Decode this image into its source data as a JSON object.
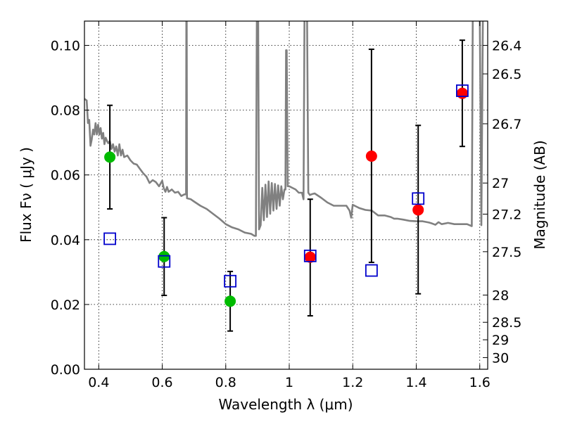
{
  "chart_data": {
    "type": "scatter",
    "xlabel": "Wavelength  λ (μm)",
    "ylabel": "Flux  Fν ( μJy )",
    "y2label": "Magnitude (AB)",
    "xlim": [
      0.355,
      1.625
    ],
    "ylim": [
      0.0,
      0.1075
    ],
    "grid": true,
    "x_ticks": [
      {
        "value": 0.4,
        "label": "0.4"
      },
      {
        "value": 0.6,
        "label": "0.6"
      },
      {
        "value": 0.8,
        "label": "0.8"
      },
      {
        "value": 1.0,
        "label": "1"
      },
      {
        "value": 1.2,
        "label": "1.2"
      },
      {
        "value": 1.4,
        "label": "1.4"
      },
      {
        "value": 1.6,
        "label": "1.6"
      }
    ],
    "y_ticks": [
      {
        "value": 0.0,
        "label": "0.00"
      },
      {
        "value": 0.02,
        "label": "0.02"
      },
      {
        "value": 0.04,
        "label": "0.04"
      },
      {
        "value": 0.06,
        "label": "0.06"
      },
      {
        "value": 0.08,
        "label": "0.08"
      },
      {
        "value": 0.1,
        "label": "0.10"
      }
    ],
    "y2_ticks": [
      {
        "flux": 0.1,
        "label": "26.4"
      },
      {
        "flux": 0.0912,
        "label": "26.5"
      },
      {
        "flux": 0.0758,
        "label": "26.7"
      },
      {
        "flux": 0.0575,
        "label": "27"
      },
      {
        "flux": 0.0479,
        "label": "27.2"
      },
      {
        "flux": 0.0363,
        "label": "27.5"
      },
      {
        "flux": 0.0229,
        "label": "28"
      },
      {
        "flux": 0.0145,
        "label": "28.5"
      },
      {
        "flux": 0.0091,
        "label": "29"
      },
      {
        "flux": 0.0036,
        "label": "30"
      }
    ],
    "series": [
      {
        "marker": "circle",
        "color": "#00bb00",
        "points": [
          {
            "x": 0.435,
            "y": 0.0655,
            "ylo": 0.0495,
            "yhi": 0.0815
          },
          {
            "x": 0.606,
            "y": 0.0348,
            "ylo": 0.0228,
            "yhi": 0.0468
          },
          {
            "x": 0.814,
            "y": 0.021,
            "ylo": 0.0118,
            "yhi": 0.0302
          }
        ]
      },
      {
        "marker": "circle",
        "color": "#ff0000",
        "points": [
          {
            "x": 1.066,
            "y": 0.0346,
            "ylo": 0.0165,
            "yhi": 0.0525
          },
          {
            "x": 1.259,
            "y": 0.0658,
            "ylo": 0.033,
            "yhi": 0.0988
          },
          {
            "x": 1.406,
            "y": 0.0492,
            "ylo": 0.0233,
            "yhi": 0.0753
          },
          {
            "x": 1.545,
            "y": 0.0852,
            "ylo": 0.0688,
            "yhi": 0.1016
          }
        ]
      },
      {
        "marker": "open-square",
        "color": "#0000cc",
        "points": [
          {
            "x": 0.435,
            "y": 0.0403
          },
          {
            "x": 0.606,
            "y": 0.0333
          },
          {
            "x": 0.814,
            "y": 0.0272
          },
          {
            "x": 1.066,
            "y": 0.035
          },
          {
            "x": 1.259,
            "y": 0.0305
          },
          {
            "x": 1.406,
            "y": 0.0527
          },
          {
            "x": 1.545,
            "y": 0.086
          }
        ]
      },
      {
        "marker": "line",
        "color": "#808080",
        "points": [
          [
            0.355,
            0.0835
          ],
          [
            0.362,
            0.083
          ],
          [
            0.366,
            0.076
          ],
          [
            0.37,
            0.077
          ],
          [
            0.374,
            0.069
          ],
          [
            0.378,
            0.071
          ],
          [
            0.382,
            0.074
          ],
          [
            0.386,
            0.0725
          ],
          [
            0.39,
            0.076
          ],
          [
            0.394,
            0.0725
          ],
          [
            0.398,
            0.0755
          ],
          [
            0.402,
            0.0725
          ],
          [
            0.406,
            0.0745
          ],
          [
            0.41,
            0.0712
          ],
          [
            0.414,
            0.073
          ],
          [
            0.418,
            0.0695
          ],
          [
            0.422,
            0.0715
          ],
          [
            0.426,
            0.0705
          ],
          [
            0.43,
            0.0698
          ],
          [
            0.435,
            0.0705
          ],
          [
            0.44,
            0.068
          ],
          [
            0.445,
            0.0695
          ],
          [
            0.45,
            0.0672
          ],
          [
            0.455,
            0.0688
          ],
          [
            0.46,
            0.066
          ],
          [
            0.465,
            0.0695
          ],
          [
            0.47,
            0.066
          ],
          [
            0.475,
            0.0678
          ],
          [
            0.48,
            0.0655
          ],
          [
            0.49,
            0.066
          ],
          [
            0.5,
            0.0645
          ],
          [
            0.51,
            0.0635
          ],
          [
            0.52,
            0.0632
          ],
          [
            0.53,
            0.0618
          ],
          [
            0.54,
            0.0605
          ],
          [
            0.55,
            0.0595
          ],
          [
            0.56,
            0.0575
          ],
          [
            0.57,
            0.0584
          ],
          [
            0.58,
            0.0578
          ],
          [
            0.59,
            0.0565
          ],
          [
            0.6,
            0.0582
          ],
          [
            0.605,
            0.0558
          ],
          [
            0.61,
            0.0548
          ],
          [
            0.615,
            0.0563
          ],
          [
            0.62,
            0.0548
          ],
          [
            0.63,
            0.0555
          ],
          [
            0.64,
            0.0545
          ],
          [
            0.65,
            0.0548
          ],
          [
            0.66,
            0.0535
          ],
          [
            0.67,
            0.054
          ],
          [
            0.675,
            0.054
          ],
          [
            0.676,
            0.11
          ],
          [
            0.677,
            0.11
          ],
          [
            0.678,
            0.0528
          ],
          [
            0.69,
            0.0525
          ],
          [
            0.7,
            0.0518
          ],
          [
            0.72,
            0.0505
          ],
          [
            0.74,
            0.0495
          ],
          [
            0.76,
            0.048
          ],
          [
            0.78,
            0.0465
          ],
          [
            0.8,
            0.0448
          ],
          [
            0.82,
            0.0438
          ],
          [
            0.84,
            0.0432
          ],
          [
            0.86,
            0.0422
          ],
          [
            0.88,
            0.0418
          ],
          [
            0.89,
            0.0412
          ],
          [
            0.895,
            0.0412
          ],
          [
            0.898,
            0.11
          ],
          [
            0.902,
            0.11
          ],
          [
            0.905,
            0.0432
          ],
          [
            0.91,
            0.0445
          ],
          [
            0.915,
            0.056
          ],
          [
            0.92,
            0.046
          ],
          [
            0.925,
            0.057
          ],
          [
            0.93,
            0.047
          ],
          [
            0.935,
            0.058
          ],
          [
            0.94,
            0.048
          ],
          [
            0.945,
            0.0575
          ],
          [
            0.95,
            0.049
          ],
          [
            0.955,
            0.0572
          ],
          [
            0.96,
            0.0495
          ],
          [
            0.965,
            0.0568
          ],
          [
            0.97,
            0.0505
          ],
          [
            0.975,
            0.0565
          ],
          [
            0.98,
            0.0525
          ],
          [
            0.985,
            0.0555
          ],
          [
            0.988,
            0.0555
          ],
          [
            0.99,
            0.0985
          ],
          [
            0.992,
            0.0985
          ],
          [
            0.995,
            0.0565
          ],
          [
            1.0,
            0.0565
          ],
          [
            1.01,
            0.056
          ],
          [
            1.02,
            0.0555
          ],
          [
            1.03,
            0.0545
          ],
          [
            1.04,
            0.0545
          ],
          [
            1.045,
            0.0525
          ],
          [
            1.048,
            0.11
          ],
          [
            1.056,
            0.11
          ],
          [
            1.06,
            0.0545
          ],
          [
            1.065,
            0.0538
          ],
          [
            1.07,
            0.054
          ],
          [
            1.08,
            0.0543
          ],
          [
            1.1,
            0.053
          ],
          [
            1.12,
            0.0515
          ],
          [
            1.14,
            0.0505
          ],
          [
            1.16,
            0.0505
          ],
          [
            1.18,
            0.0505
          ],
          [
            1.19,
            0.049
          ],
          [
            1.195,
            0.0468
          ],
          [
            1.2,
            0.0508
          ],
          [
            1.22,
            0.0498
          ],
          [
            1.24,
            0.0492
          ],
          [
            1.26,
            0.049
          ],
          [
            1.28,
            0.0475
          ],
          [
            1.3,
            0.0475
          ],
          [
            1.32,
            0.047
          ],
          [
            1.33,
            0.0465
          ],
          [
            1.34,
            0.0465
          ],
          [
            1.36,
            0.0462
          ],
          [
            1.38,
            0.0458
          ],
          [
            1.4,
            0.0457
          ],
          [
            1.42,
            0.0457
          ],
          [
            1.44,
            0.0453
          ],
          [
            1.45,
            0.045
          ],
          [
            1.46,
            0.0446
          ],
          [
            1.47,
            0.0454
          ],
          [
            1.48,
            0.0448
          ],
          [
            1.5,
            0.0452
          ],
          [
            1.52,
            0.0448
          ],
          [
            1.54,
            0.0448
          ],
          [
            1.56,
            0.0448
          ],
          [
            1.575,
            0.0442
          ],
          [
            1.578,
            0.11
          ],
          [
            1.595,
            0.11
          ],
          [
            1.6,
            0.11
          ],
          [
            1.605,
            0.0445
          ],
          [
            1.61,
            0.11
          ],
          [
            1.615,
            0.11
          ]
        ]
      }
    ]
  }
}
